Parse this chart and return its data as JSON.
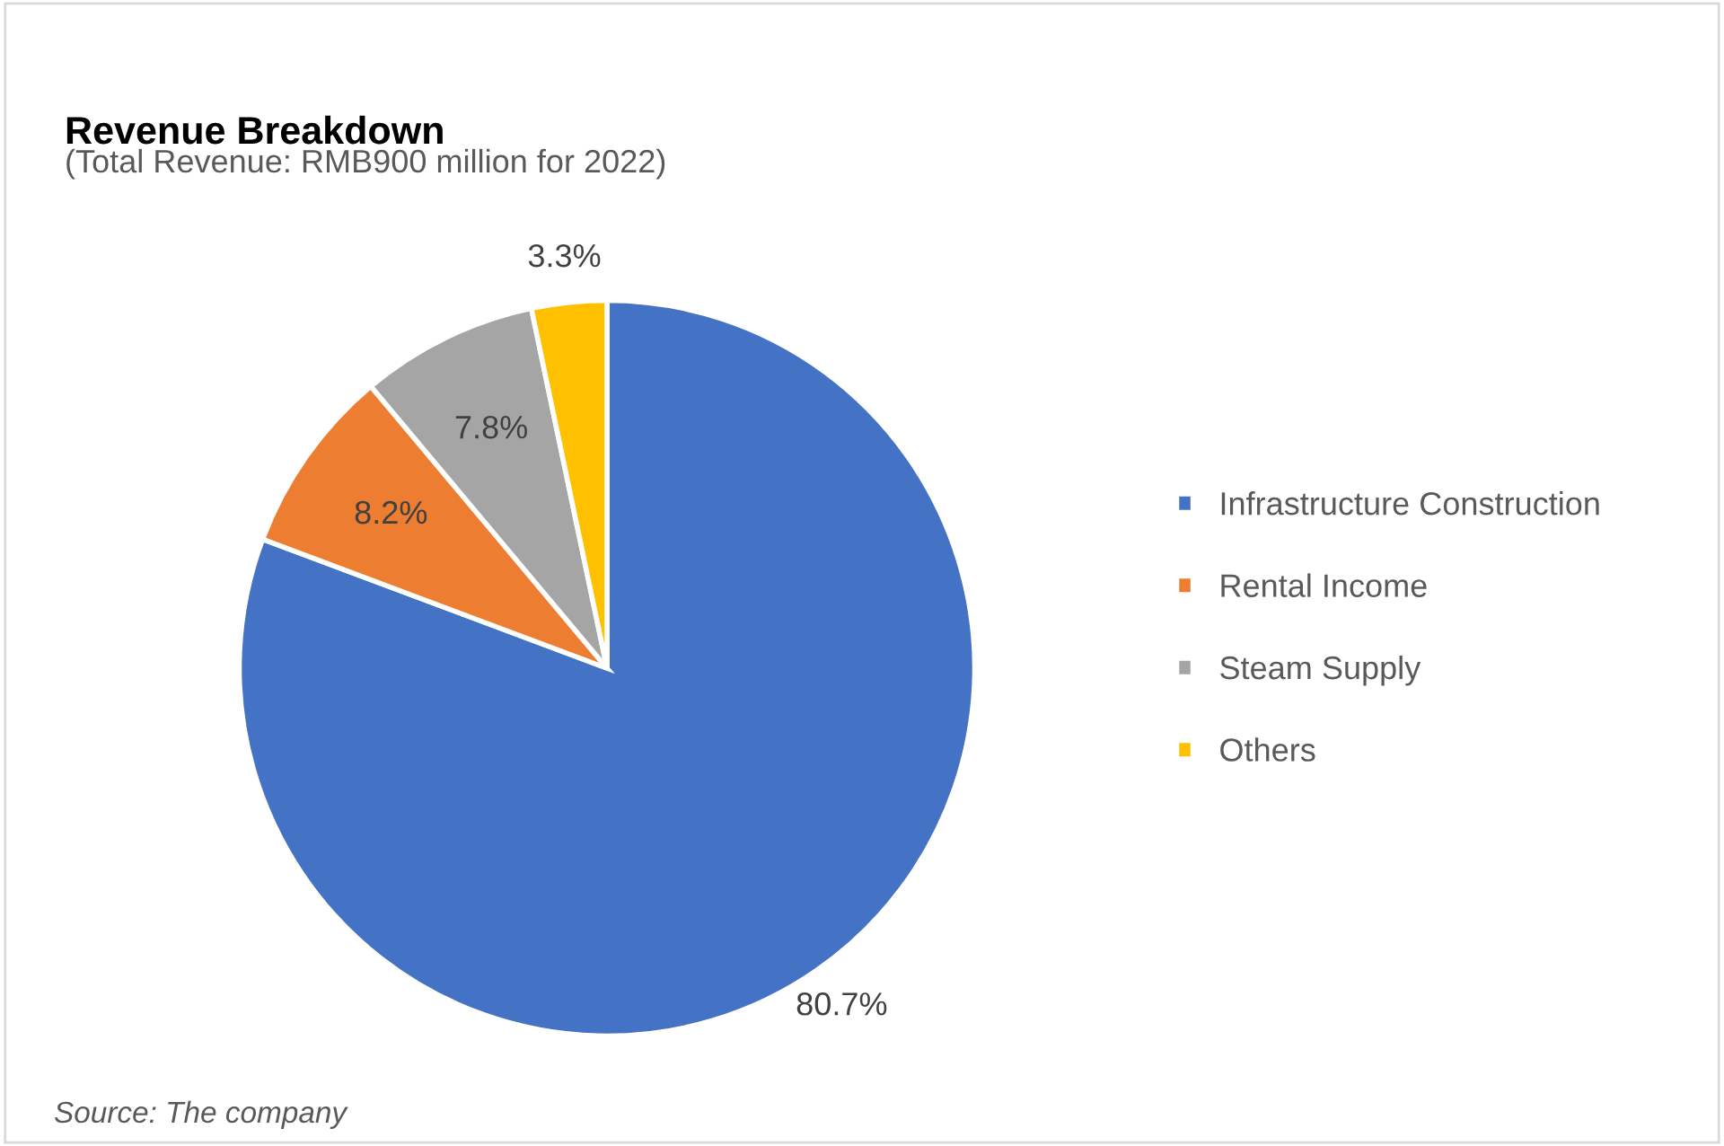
{
  "chart_data": {
    "type": "pie",
    "title": "Revenue Breakdown",
    "subtitle": "(Total Revenue: RMB900 million for 2022)",
    "categories": [
      "Infrastructure Construction",
      "Rental Income",
      "Steam Supply",
      "Others"
    ],
    "values": [
      80.7,
      8.2,
      7.8,
      3.3
    ],
    "colors": [
      "#4472c4",
      "#ed7d31",
      "#a5a5a5",
      "#ffc000"
    ],
    "value_labels": [
      "80.7%",
      "8.2%",
      "7.8%",
      "3.3%"
    ],
    "legend": "right",
    "annotations": [
      "Source: The company"
    ]
  }
}
